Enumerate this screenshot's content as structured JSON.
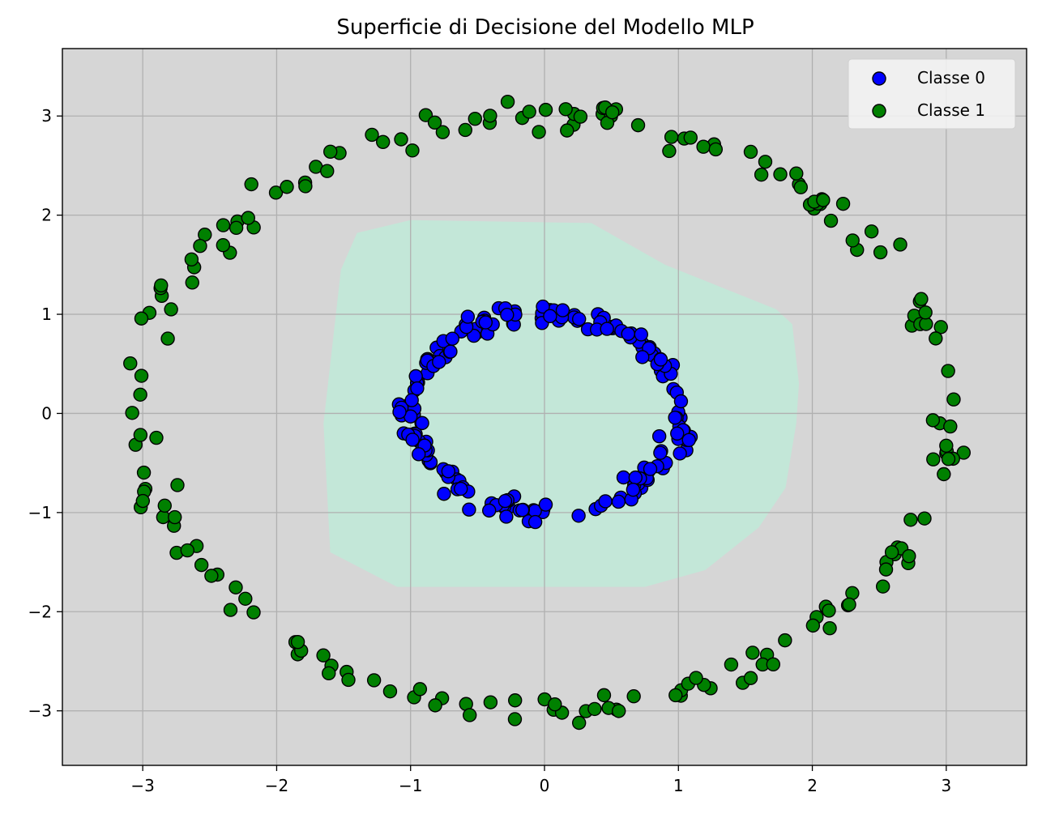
{
  "chart_data": {
    "type": "scatter",
    "title": "Superficie di Decisione del Modello MLP",
    "xlabel": "",
    "ylabel": "",
    "xlim": [
      -3.6,
      3.6
    ],
    "ylim": [
      -3.55,
      3.68
    ],
    "xticks": [
      -3,
      -2,
      -1,
      0,
      1,
      2,
      3
    ],
    "xtick_labels": [
      "−3",
      "−2",
      "−1",
      "0",
      "1",
      "2",
      "3"
    ],
    "yticks": [
      -3,
      -2,
      -1,
      0,
      1,
      2,
      3
    ],
    "ytick_labels": [
      "−3",
      "−2",
      "−1",
      "0",
      "1",
      "2",
      "3"
    ],
    "grid": true,
    "legend": "top-right",
    "background_color": "#d6d6d6",
    "decision_region": {
      "label": "Classe 0",
      "color": "#c3e7d8",
      "polygon": [
        [
          -1.4,
          1.82
        ],
        [
          -1.0,
          1.95
        ],
        [
          0.35,
          1.92
        ],
        [
          0.9,
          1.5
        ],
        [
          1.73,
          1.05
        ],
        [
          1.85,
          0.9
        ],
        [
          1.9,
          0.3
        ],
        [
          1.88,
          -0.1
        ],
        [
          1.8,
          -0.75
        ],
        [
          1.6,
          -1.15
        ],
        [
          1.2,
          -1.58
        ],
        [
          0.75,
          -1.75
        ],
        [
          -1.1,
          -1.75
        ],
        [
          -1.6,
          -1.4
        ],
        [
          -1.65,
          -0.1
        ],
        [
          -1.52,
          1.45
        ]
      ]
    },
    "series": [
      {
        "name": "Classe 0",
        "color": "#0000ff",
        "edge_color": "#000000",
        "ring": {
          "cx": 0.0,
          "cy": 0.0,
          "radius": 1.0,
          "noise": 0.1,
          "n": 200
        }
      },
      {
        "name": "Classe 1",
        "color": "#008000",
        "edge_color": "#000000",
        "ring": {
          "cx": 0.0,
          "cy": 0.0,
          "radius": 3.0,
          "noise": 0.15,
          "n": 200
        }
      }
    ]
  }
}
